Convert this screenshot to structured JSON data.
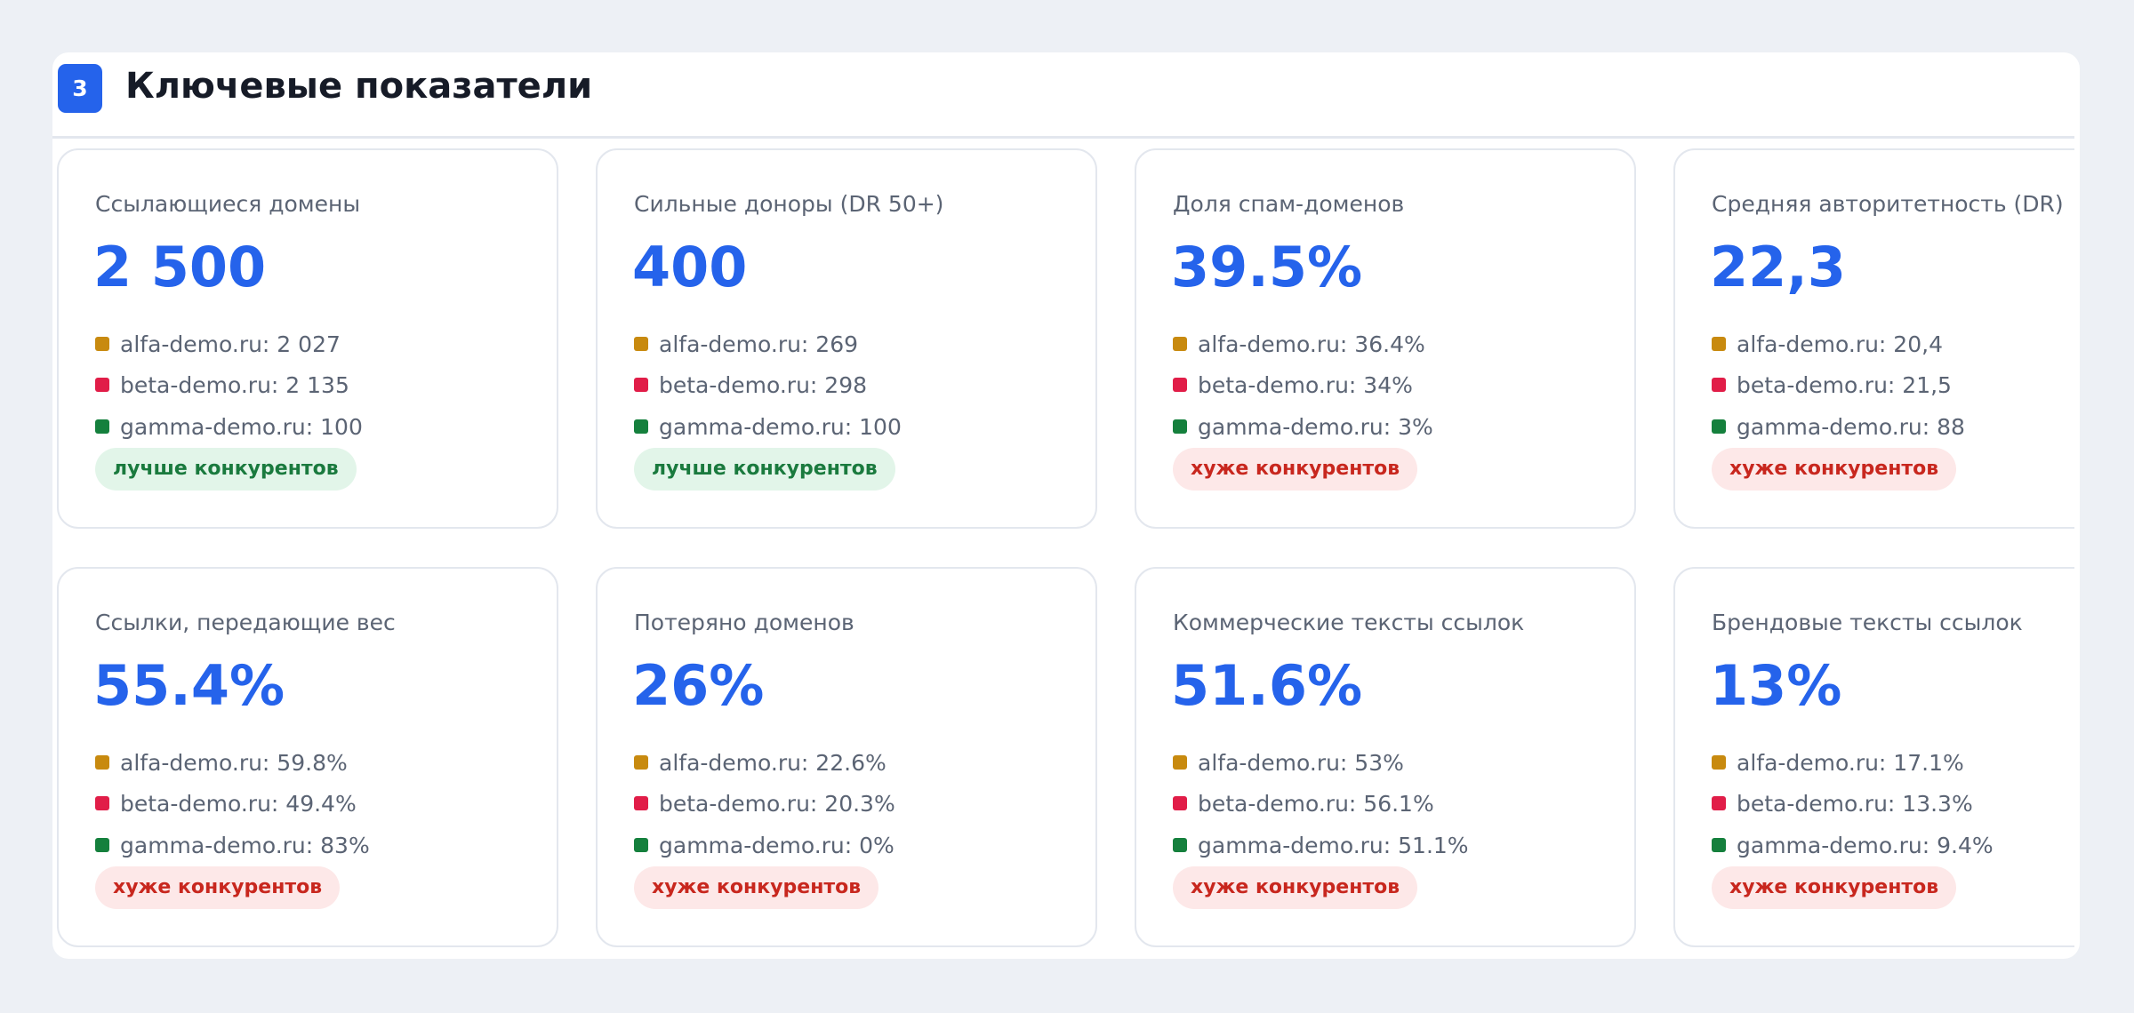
{
  "section": {
    "number": "3",
    "title": "Ключевые показатели"
  },
  "colors": {
    "accent": "#2563eb",
    "alfa": "#c88a0f",
    "beta": "#e11d48",
    "gamma": "#15803d",
    "good": "#1a7a3e",
    "bad": "#c8271e"
  },
  "cards": [
    {
      "label": "Ссылающиеся домены",
      "value": "2 500",
      "competitors": [
        "alfa-demo.ru: 2 027",
        "beta-demo.ru: 2 135",
        "gamma-demo.ru: 100"
      ],
      "status": "лучше конкурентов",
      "status_type": "good"
    },
    {
      "label": "Сильные доноры (DR 50+)",
      "value": "400",
      "competitors": [
        "alfa-demo.ru: 269",
        "beta-demo.ru: 298",
        "gamma-demo.ru: 100"
      ],
      "status": "лучше конкурентов",
      "status_type": "good"
    },
    {
      "label": "Доля спам-доменов",
      "value": "39.5%",
      "competitors": [
        "alfa-demo.ru: 36.4%",
        "beta-demo.ru: 34%",
        "gamma-demo.ru: 3%"
      ],
      "status": "хуже конкурентов",
      "status_type": "bad"
    },
    {
      "label": "Средняя авторитетность (DR)",
      "value": "22,3",
      "competitors": [
        "alfa-demo.ru: 20,4",
        "beta-demo.ru: 21,5",
        "gamma-demo.ru: 88"
      ],
      "status": "хуже конкурентов",
      "status_type": "bad"
    },
    {
      "label": "Ссылки, передающие вес",
      "value": "55.4%",
      "competitors": [
        "alfa-demo.ru: 59.8%",
        "beta-demo.ru: 49.4%",
        "gamma-demo.ru: 83%"
      ],
      "status": "хуже конкурентов",
      "status_type": "bad"
    },
    {
      "label": "Потеряно доменов",
      "value": "26%",
      "competitors": [
        "alfa-demo.ru: 22.6%",
        "beta-demo.ru: 20.3%",
        "gamma-demo.ru: 0%"
      ],
      "status": "хуже конкурентов",
      "status_type": "bad"
    },
    {
      "label": "Коммерческие тексты ссылок",
      "value": "51.6%",
      "competitors": [
        "alfa-demo.ru: 53%",
        "beta-demo.ru: 56.1%",
        "gamma-demo.ru: 51.1%"
      ],
      "status": "хуже конкурентов",
      "status_type": "bad"
    },
    {
      "label": "Брендовые тексты ссылок",
      "value": "13%",
      "competitors": [
        "alfa-demo.ru: 17.1%",
        "beta-demo.ru: 13.3%",
        "gamma-demo.ru: 9.4%"
      ],
      "status": "хуже конкурентов",
      "status_type": "bad"
    }
  ]
}
